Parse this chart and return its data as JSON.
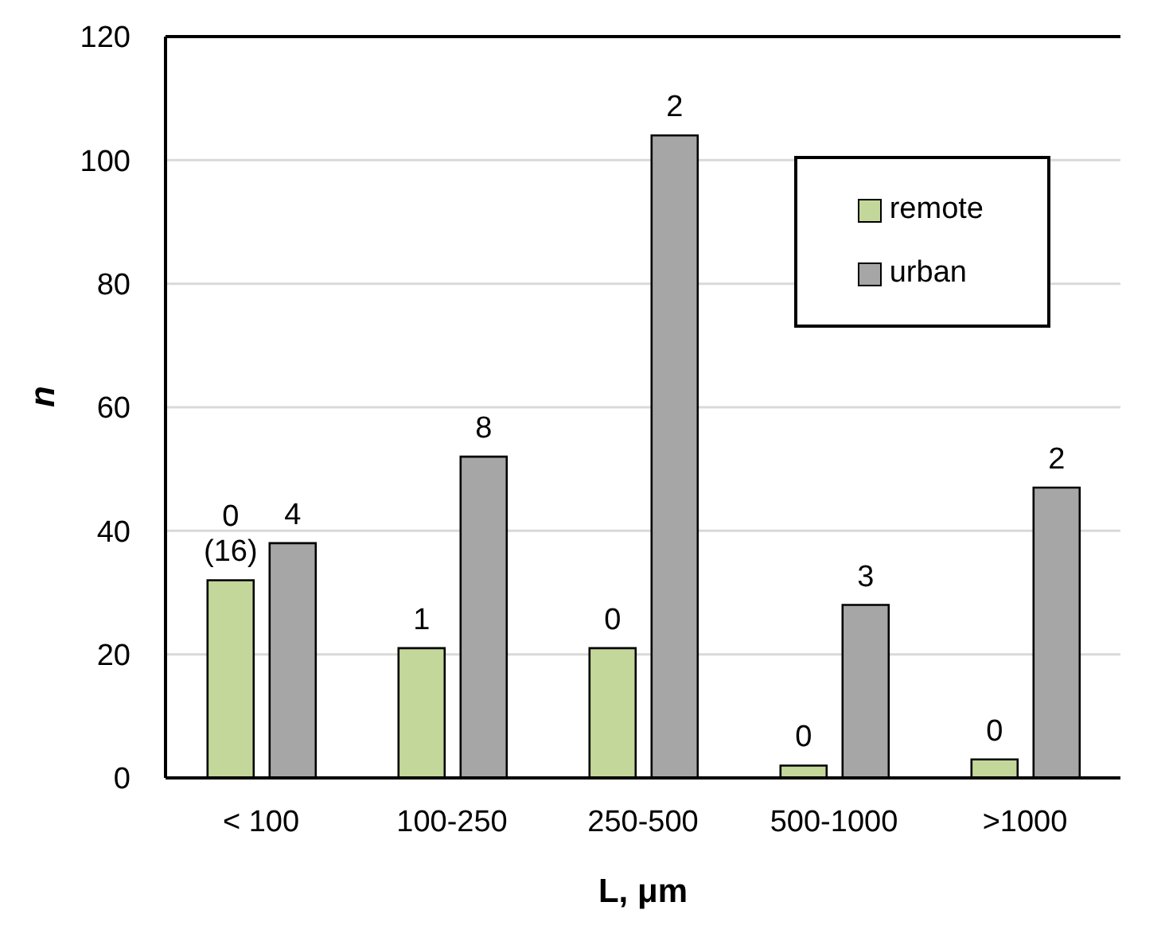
{
  "chart_data": {
    "type": "bar",
    "xlabel": "L, μm",
    "ylabel": "n",
    "categories": [
      "< 100",
      "100-250",
      "250-500",
      "500-1000",
      ">1000"
    ],
    "series": [
      {
        "name": "remote",
        "color": "#c4d79b",
        "values": [
          32,
          21,
          21,
          2,
          3
        ]
      },
      {
        "name": "urban",
        "color": "#a6a6a6",
        "values": [
          38,
          52,
          104,
          28,
          47
        ]
      }
    ],
    "annotations": [
      "0\n(16)",
      "1",
      "0",
      "0",
      "0",
      "4",
      "8",
      "2",
      "3",
      "2"
    ],
    "ylim": [
      0,
      120
    ],
    "yticks": [
      0,
      20,
      40,
      60,
      80,
      100,
      120
    ],
    "grid": "y",
    "legend": "top right"
  }
}
